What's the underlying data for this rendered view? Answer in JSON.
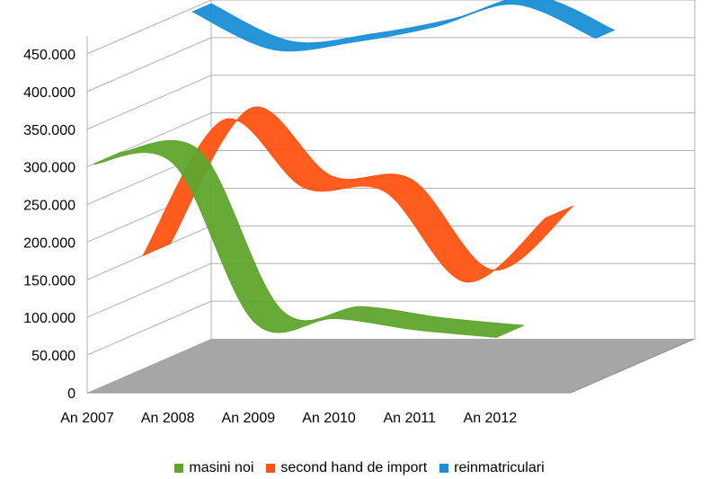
{
  "chart_data": {
    "type": "line",
    "style": "3d-ribbon",
    "categories": [
      "An 2007",
      "An 2008",
      "An 2009",
      "An 2010",
      "An 2011",
      "An 2012"
    ],
    "y_ticks": [
      "0",
      "50.000",
      "100.000",
      "150.000",
      "200.000",
      "250.000",
      "300.000",
      "350.000",
      "400.000",
      "450.000"
    ],
    "ylim": [
      0,
      450000
    ],
    "grid": true,
    "legend_position": "bottom",
    "series": [
      {
        "name": "reinmatriculari",
        "color": "#1a8fd6",
        "values": [
          445000,
          395000,
          405000,
          425000,
          455000,
          410000
        ]
      },
      {
        "name": "second hand de import",
        "color": "#ff5311",
        "values": [
          150000,
          330000,
          240000,
          235000,
          115000,
          200000
        ]
      },
      {
        "name": "masini noi",
        "color": "#5fa52c",
        "values": [
          300000,
          300000,
          90000,
          95000,
          80000,
          70000
        ]
      }
    ]
  }
}
